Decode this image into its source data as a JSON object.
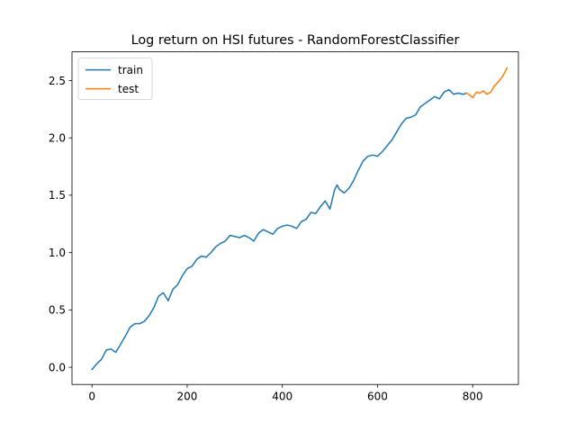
{
  "chart_data": {
    "type": "line",
    "title": "Log return on HSI futures - RandomForestClassifier",
    "xlabel": "",
    "ylabel": "",
    "xlim": [
      -42,
      896
    ],
    "ylim": [
      -0.15,
      2.75
    ],
    "xticks": [
      0,
      200,
      400,
      600,
      800
    ],
    "yticks": [
      0.0,
      0.5,
      1.0,
      1.5,
      2.0,
      2.5
    ],
    "xtick_labels": [
      "0",
      "200",
      "400",
      "600",
      "800"
    ],
    "ytick_labels": [
      "0.0",
      "0.5",
      "1.0",
      "1.5",
      "2.0",
      "2.5"
    ],
    "grid": false,
    "legend_position": "top-left",
    "series": [
      {
        "name": "train",
        "color": "#1f77b4",
        "x": [
          0,
          10,
          20,
          30,
          40,
          50,
          60,
          70,
          80,
          90,
          100,
          110,
          120,
          130,
          140,
          150,
          160,
          170,
          180,
          190,
          200,
          210,
          220,
          230,
          240,
          250,
          260,
          270,
          280,
          290,
          300,
          310,
          320,
          330,
          340,
          350,
          360,
          370,
          380,
          390,
          400,
          410,
          420,
          430,
          440,
          450,
          460,
          470,
          480,
          490,
          500,
          510,
          515,
          520,
          530,
          540,
          550,
          560,
          570,
          580,
          590,
          600,
          610,
          620,
          630,
          640,
          650,
          660,
          670,
          680,
          690,
          700,
          710,
          720,
          730,
          740,
          750,
          760,
          770,
          780,
          787
        ],
        "y": [
          -0.02,
          0.03,
          0.07,
          0.15,
          0.16,
          0.13,
          0.2,
          0.27,
          0.35,
          0.38,
          0.38,
          0.4,
          0.45,
          0.52,
          0.62,
          0.65,
          0.58,
          0.68,
          0.72,
          0.8,
          0.86,
          0.88,
          0.94,
          0.97,
          0.96,
          1.0,
          1.05,
          1.08,
          1.1,
          1.15,
          1.14,
          1.13,
          1.15,
          1.13,
          1.1,
          1.17,
          1.2,
          1.18,
          1.16,
          1.21,
          1.23,
          1.24,
          1.23,
          1.21,
          1.27,
          1.29,
          1.35,
          1.34,
          1.4,
          1.45,
          1.38,
          1.55,
          1.59,
          1.55,
          1.52,
          1.56,
          1.63,
          1.72,
          1.8,
          1.84,
          1.85,
          1.84,
          1.88,
          1.93,
          1.98,
          2.05,
          2.12,
          2.17,
          2.18,
          2.2,
          2.27,
          2.3,
          2.33,
          2.36,
          2.34,
          2.4,
          2.42,
          2.38,
          2.39,
          2.38,
          2.39
        ]
      },
      {
        "name": "test",
        "color": "#ff7f0e",
        "x": [
          787,
          795,
          800,
          808,
          815,
          822,
          830,
          838,
          845,
          852,
          860,
          866,
          872
        ],
        "y": [
          2.39,
          2.37,
          2.35,
          2.4,
          2.39,
          2.41,
          2.38,
          2.4,
          2.45,
          2.48,
          2.52,
          2.56,
          2.61
        ]
      }
    ]
  }
}
